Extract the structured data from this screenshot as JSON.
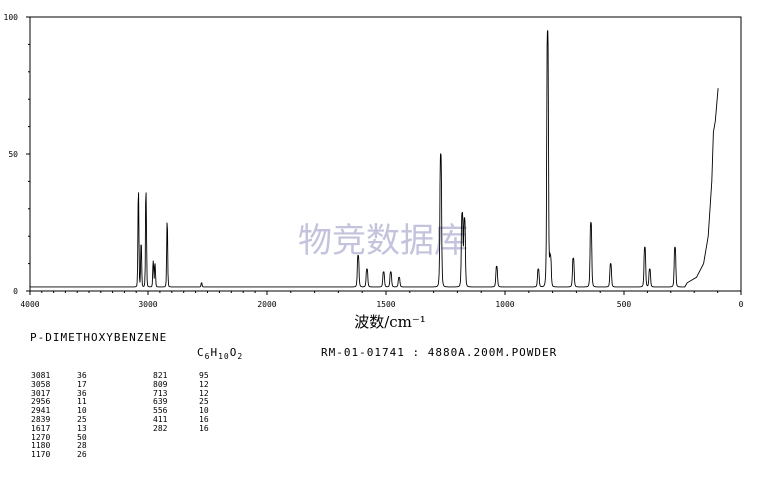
{
  "chart_data": {
    "type": "line",
    "title": "",
    "xlabel": "波数/cm⁻¹",
    "ylabel": "",
    "xlim": [
      4000,
      0
    ],
    "ylim": [
      0,
      100
    ],
    "x_ticks": [
      "4000",
      "3000",
      "2000",
      "1500",
      "1000",
      "500",
      "0"
    ],
    "y_ticks": [
      "100",
      "50",
      "0"
    ],
    "watermark": "物竞数据库",
    "baseline": 1.5,
    "peaks": [
      {
        "x": 3081,
        "y": 36
      },
      {
        "x": 3058,
        "y": 17
      },
      {
        "x": 3017,
        "y": 36
      },
      {
        "x": 2956,
        "y": 11
      },
      {
        "x": 2941,
        "y": 10
      },
      {
        "x": 2839,
        "y": 25
      },
      {
        "x": 2550,
        "y": 3
      },
      {
        "x": 1617,
        "y": 13
      },
      {
        "x": 1580,
        "y": 8
      },
      {
        "x": 1510,
        "y": 7
      },
      {
        "x": 1480,
        "y": 7
      },
      {
        "x": 1445,
        "y": 5
      },
      {
        "x": 1270,
        "y": 50
      },
      {
        "x": 1180,
        "y": 28
      },
      {
        "x": 1170,
        "y": 26
      },
      {
        "x": 1035,
        "y": 9
      },
      {
        "x": 860,
        "y": 8
      },
      {
        "x": 821,
        "y": 95
      },
      {
        "x": 809,
        "y": 12
      },
      {
        "x": 713,
        "y": 12
      },
      {
        "x": 639,
        "y": 25
      },
      {
        "x": 556,
        "y": 10
      },
      {
        "x": 411,
        "y": 16
      },
      {
        "x": 390,
        "y": 8
      },
      {
        "x": 282,
        "y": 16
      }
    ],
    "rise": [
      {
        "x": 230,
        "y": 3
      },
      {
        "x": 190,
        "y": 5
      },
      {
        "x": 160,
        "y": 10
      },
      {
        "x": 140,
        "y": 20
      },
      {
        "x": 125,
        "y": 40
      },
      {
        "x": 118,
        "y": 58
      },
      {
        "x": 110,
        "y": 62
      },
      {
        "x": 104,
        "y": 68
      },
      {
        "x": 98,
        "y": 74
      }
    ]
  },
  "info": {
    "compound": "P-DIMETHOXYBENZENE",
    "formula_parts": [
      "C",
      "6",
      "H",
      "10",
      "O",
      "2"
    ],
    "sample": "RM-01-01741 : 4880A.200M.POWDER"
  },
  "peak_table": {
    "col1": [
      [
        "3081",
        "36"
      ],
      [
        "3058",
        "17"
      ],
      [
        "3017",
        "36"
      ],
      [
        "2956",
        "11"
      ],
      [
        "2941",
        "10"
      ],
      [
        "2839",
        "25"
      ],
      [
        "1617",
        "13"
      ],
      [
        "1270",
        "50"
      ],
      [
        "1180",
        "28"
      ],
      [
        "1170",
        "26"
      ]
    ],
    "col2": [
      [
        "821",
        "95"
      ],
      [
        "809",
        "12"
      ],
      [
        "713",
        "12"
      ],
      [
        "639",
        "25"
      ],
      [
        "556",
        "10"
      ],
      [
        "411",
        "16"
      ],
      [
        "282",
        "16"
      ]
    ]
  }
}
